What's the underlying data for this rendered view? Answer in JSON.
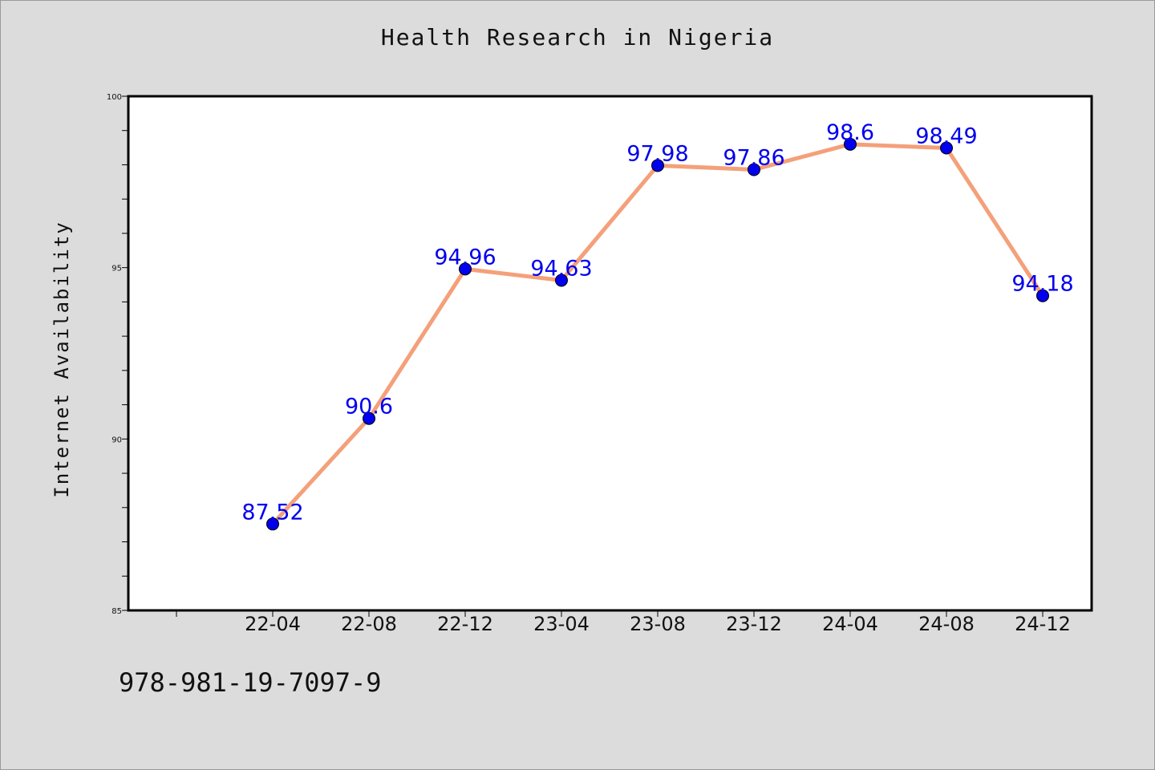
{
  "chart_data": {
    "type": "line",
    "title": "Health Research in Nigeria",
    "ylabel": "Internet Availability",
    "xlabel": "",
    "categories": [
      "22-04",
      "22-08",
      "22-12",
      "23-04",
      "23-08",
      "23-12",
      "24-04",
      "24-08",
      "24-12"
    ],
    "values": [
      87.52,
      90.6,
      94.96,
      94.63,
      97.98,
      97.86,
      98.6,
      98.49,
      94.18
    ],
    "data_labels": [
      "87.52",
      "90.6",
      "94.96",
      "94.63",
      "97.98",
      "97.86",
      "98.6",
      "98.49",
      "94.18"
    ],
    "ylim": [
      85,
      100
    ],
    "yticks": [
      "85",
      "90",
      "95",
      "100"
    ],
    "grid": false,
    "line_color": "#f4a07a",
    "marker_color": "#0000ee",
    "label_color": "#0000ee"
  },
  "footer": {
    "code": "978-981-19-7097-9"
  }
}
